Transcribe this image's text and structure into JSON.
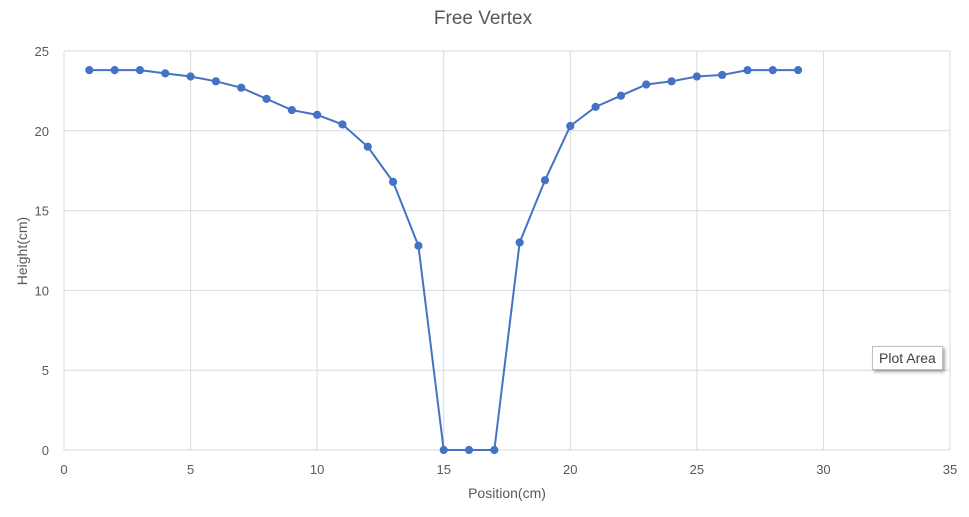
{
  "chart_data": {
    "type": "scatter",
    "title": "Free Vertex",
    "xlabel": "Position(cm)",
    "ylabel": "Height(cm)",
    "xlim": [
      0,
      35
    ],
    "ylim": [
      0,
      25
    ],
    "xticks": [
      0,
      5,
      10,
      15,
      20,
      25,
      30,
      35
    ],
    "yticks": [
      0,
      5,
      10,
      15,
      20,
      25
    ],
    "grid": true,
    "legend": "none",
    "series": [
      {
        "color": "#4472c4",
        "marker": "circle",
        "line": "straight",
        "x": [
          1,
          2,
          3,
          4,
          5,
          6,
          7,
          8,
          9,
          10,
          11,
          12,
          13,
          14,
          15,
          16,
          17,
          18,
          19,
          20,
          21,
          22,
          23,
          24,
          25,
          26,
          27,
          28,
          29
        ],
        "y": [
          23.8,
          23.8,
          23.8,
          23.6,
          23.4,
          23.1,
          22.7,
          22.0,
          21.3,
          21.0,
          20.4,
          19.0,
          16.8,
          12.8,
          0,
          0,
          0,
          13.0,
          16.9,
          20.3,
          21.5,
          22.2,
          22.9,
          23.1,
          23.4,
          23.5,
          23.8,
          23.8,
          23.8
        ]
      }
    ]
  },
  "tooltip": {
    "label": "Plot Area"
  }
}
